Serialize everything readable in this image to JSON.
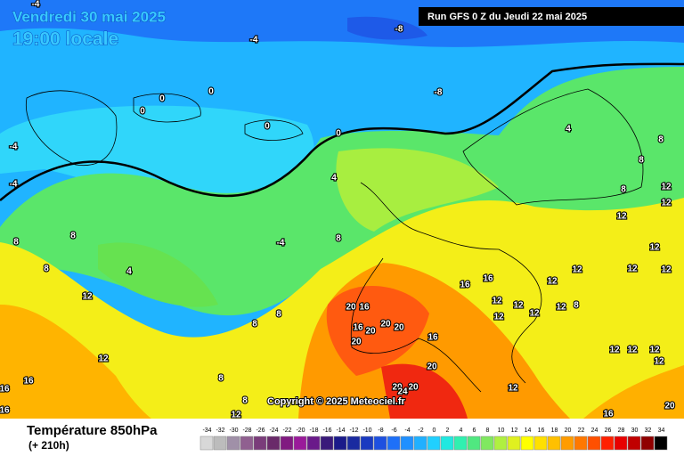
{
  "header": {
    "date": "Vendredi 30 mai 2025",
    "time": "19:00 locale",
    "run": "Run GFS 0 Z du Jeudi 22 mai 2025",
    "copyright": "Copyright © 2025 Meteociel.fr"
  },
  "footer": {
    "title": "Température 850hPa",
    "lead": "(+ 210h)"
  },
  "scale": {
    "ticks": [
      -34,
      -32,
      -30,
      -28,
      -26,
      -24,
      -22,
      -20,
      -18,
      -16,
      -14,
      -12,
      -10,
      -8,
      -6,
      -4,
      -2,
      0,
      2,
      4,
      6,
      8,
      10,
      12,
      14,
      16,
      18,
      20,
      22,
      24,
      26,
      28,
      30,
      32,
      34
    ],
    "colors": [
      "#d8d8d8",
      "#bcbcbc",
      "#a090a8",
      "#906090",
      "#7a3c7a",
      "#6a2a6a",
      "#801a80",
      "#9a1a9a",
      "#6a1a8a",
      "#3a1a7a",
      "#1a1a8a",
      "#1a2aa0",
      "#1a3ac0",
      "#1e50e0",
      "#1e70f8",
      "#2090ff",
      "#20b0ff",
      "#20d0ff",
      "#20e8e0",
      "#30f0b0",
      "#50e880",
      "#80e860",
      "#b0f040",
      "#e0f020",
      "#ffff00",
      "#ffe000",
      "#ffc000",
      "#ff9c00",
      "#ff7800",
      "#ff5000",
      "#ff2000",
      "#e80000",
      "#c00000",
      "#900000",
      "#000000"
    ]
  },
  "contour_labels": [
    -4,
    -8,
    -4,
    0,
    0,
    0,
    0,
    -4,
    -4,
    0,
    -8,
    4,
    4,
    8,
    8,
    8,
    12,
    12,
    12,
    8,
    8,
    -4,
    8,
    4,
    8,
    12,
    12,
    12,
    12,
    12,
    16,
    16,
    12,
    12,
    12,
    12,
    12,
    8,
    12,
    20,
    16,
    16,
    20,
    20,
    20,
    20,
    16,
    12,
    8,
    8,
    20,
    12,
    12,
    12,
    12,
    16,
    16,
    8,
    20,
    20,
    24,
    12,
    8,
    16,
    12,
    16,
    20
  ]
}
